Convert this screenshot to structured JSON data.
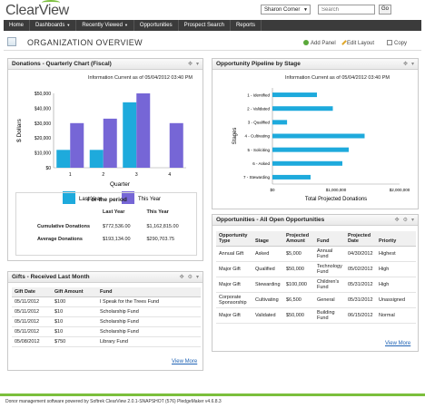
{
  "header": {
    "logo": "ClearView",
    "user": "Sharon Corner",
    "search": {
      "placeholder": "Search",
      "value": ""
    },
    "go_label": "Go"
  },
  "nav": {
    "items": [
      {
        "label": "Home",
        "dropdown": false
      },
      {
        "label": "Dashboards",
        "dropdown": true
      },
      {
        "label": "Recently Viewed",
        "dropdown": true
      },
      {
        "label": "Opportunities",
        "dropdown": false
      },
      {
        "label": "Prospect Search",
        "dropdown": false
      },
      {
        "label": "Reports",
        "dropdown": false
      }
    ]
  },
  "page": {
    "title": "ORGANIZATION OVERVIEW",
    "actions": {
      "add_panel": "Add Panel",
      "edit_layout": "Edit Layout",
      "copy": "Copy"
    }
  },
  "donations": {
    "title": "Donations - Quarterly Chart (Fiscal)",
    "info": "Information Current as of 05/04/2012 03:40 PM",
    "chart_data": {
      "type": "bar",
      "categories": [
        "1",
        "2",
        "3",
        "4"
      ],
      "series": [
        {
          "name": "Last Year",
          "values": [
            12000,
            12000,
            44000,
            0
          ],
          "color": "#1eaadc"
        },
        {
          "name": "This Year",
          "values": [
            30000,
            33000,
            50000,
            30000
          ],
          "color": "#7666d6"
        }
      ],
      "ylim": [
        0,
        50000
      ],
      "yticks": [
        "$0",
        "$10,000",
        "$20,000",
        "$30,000",
        "$40,000",
        "$50,000"
      ],
      "ylabel": "$ Dollars",
      "xlabel": "Quarter",
      "legend": "bottom"
    },
    "period": {
      "title": "For the period",
      "col_last": "Last Year",
      "col_this": "This Year",
      "rows": [
        {
          "label": "Cumulative Donations",
          "last": "$772,536.00",
          "this": "$1,162,815.00"
        },
        {
          "label": "Average Donations",
          "last": "$193,134.00",
          "this": "$290,703.75"
        }
      ]
    }
  },
  "pipeline": {
    "title": "Opportunity Pipeline by Stage",
    "info": "Information Current as of 05/04/2012 03:40 PM",
    "chart_data": {
      "type": "bar",
      "orientation": "horizontal",
      "categories": [
        "1 - Identified",
        "2 - Validated",
        "3 - Qualified",
        "4 - Cultivating",
        "5 - Soliciting",
        "6 - Asked",
        "7 - Stewarding"
      ],
      "values": [
        700000,
        950000,
        230000,
        1450000,
        1200000,
        1100000,
        600000
      ],
      "color": "#1eaadc",
      "xlim": [
        0,
        2000000
      ],
      "xticks": [
        "$0",
        "$1,000,000",
        "$2,000,000"
      ],
      "xlabel": "Total Projected Donations",
      "ylabel": "Stages"
    }
  },
  "opportunities": {
    "title": "Opportunities - All Open Opportunities",
    "columns": [
      "Opportunity Type",
      "Stage",
      "Projected Amount",
      "Fund",
      "Projected Date",
      "Priority"
    ],
    "rows": [
      [
        "Annual Gift",
        "Asked",
        "$5,000",
        "Annual Fund",
        "04/30/2012",
        "Highest"
      ],
      [
        "Major Gift",
        "Qualified",
        "$50,000",
        "Technology Fund",
        "05/02/2012",
        "High"
      ],
      [
        "Major Gift",
        "Stewarding",
        "$100,000",
        "Children's Fund",
        "05/31/2012",
        "High"
      ],
      [
        "Corporate Sponsorship",
        "Cultivating",
        "$6,500",
        "General",
        "05/31/2012",
        "Unassigned"
      ],
      [
        "Major Gift",
        "Validated",
        "$50,000",
        "Building Fund",
        "06/15/2012",
        "Normal"
      ]
    ],
    "view_more": "View More"
  },
  "gifts": {
    "title": "Gifts - Received Last Month",
    "columns": [
      "Gift Date",
      "Gift Amount",
      "Fund"
    ],
    "rows": [
      [
        "05/11/2012",
        "$100",
        "I Speak for the Trees Fund"
      ],
      [
        "05/11/2012",
        "$10",
        "Scholarship Fund"
      ],
      [
        "05/11/2012",
        "$10",
        "Scholarship Fund"
      ],
      [
        "05/11/2012",
        "$10",
        "Scholarship Fund"
      ],
      [
        "05/08/2012",
        "$750",
        "Library Fund"
      ]
    ],
    "view_more": "View More"
  },
  "footer": {
    "text": "Donor management software powered by Softrek ClearView 2.0.1-SNAPSHOT (576) PledgeMaker v4.6.8.3"
  }
}
